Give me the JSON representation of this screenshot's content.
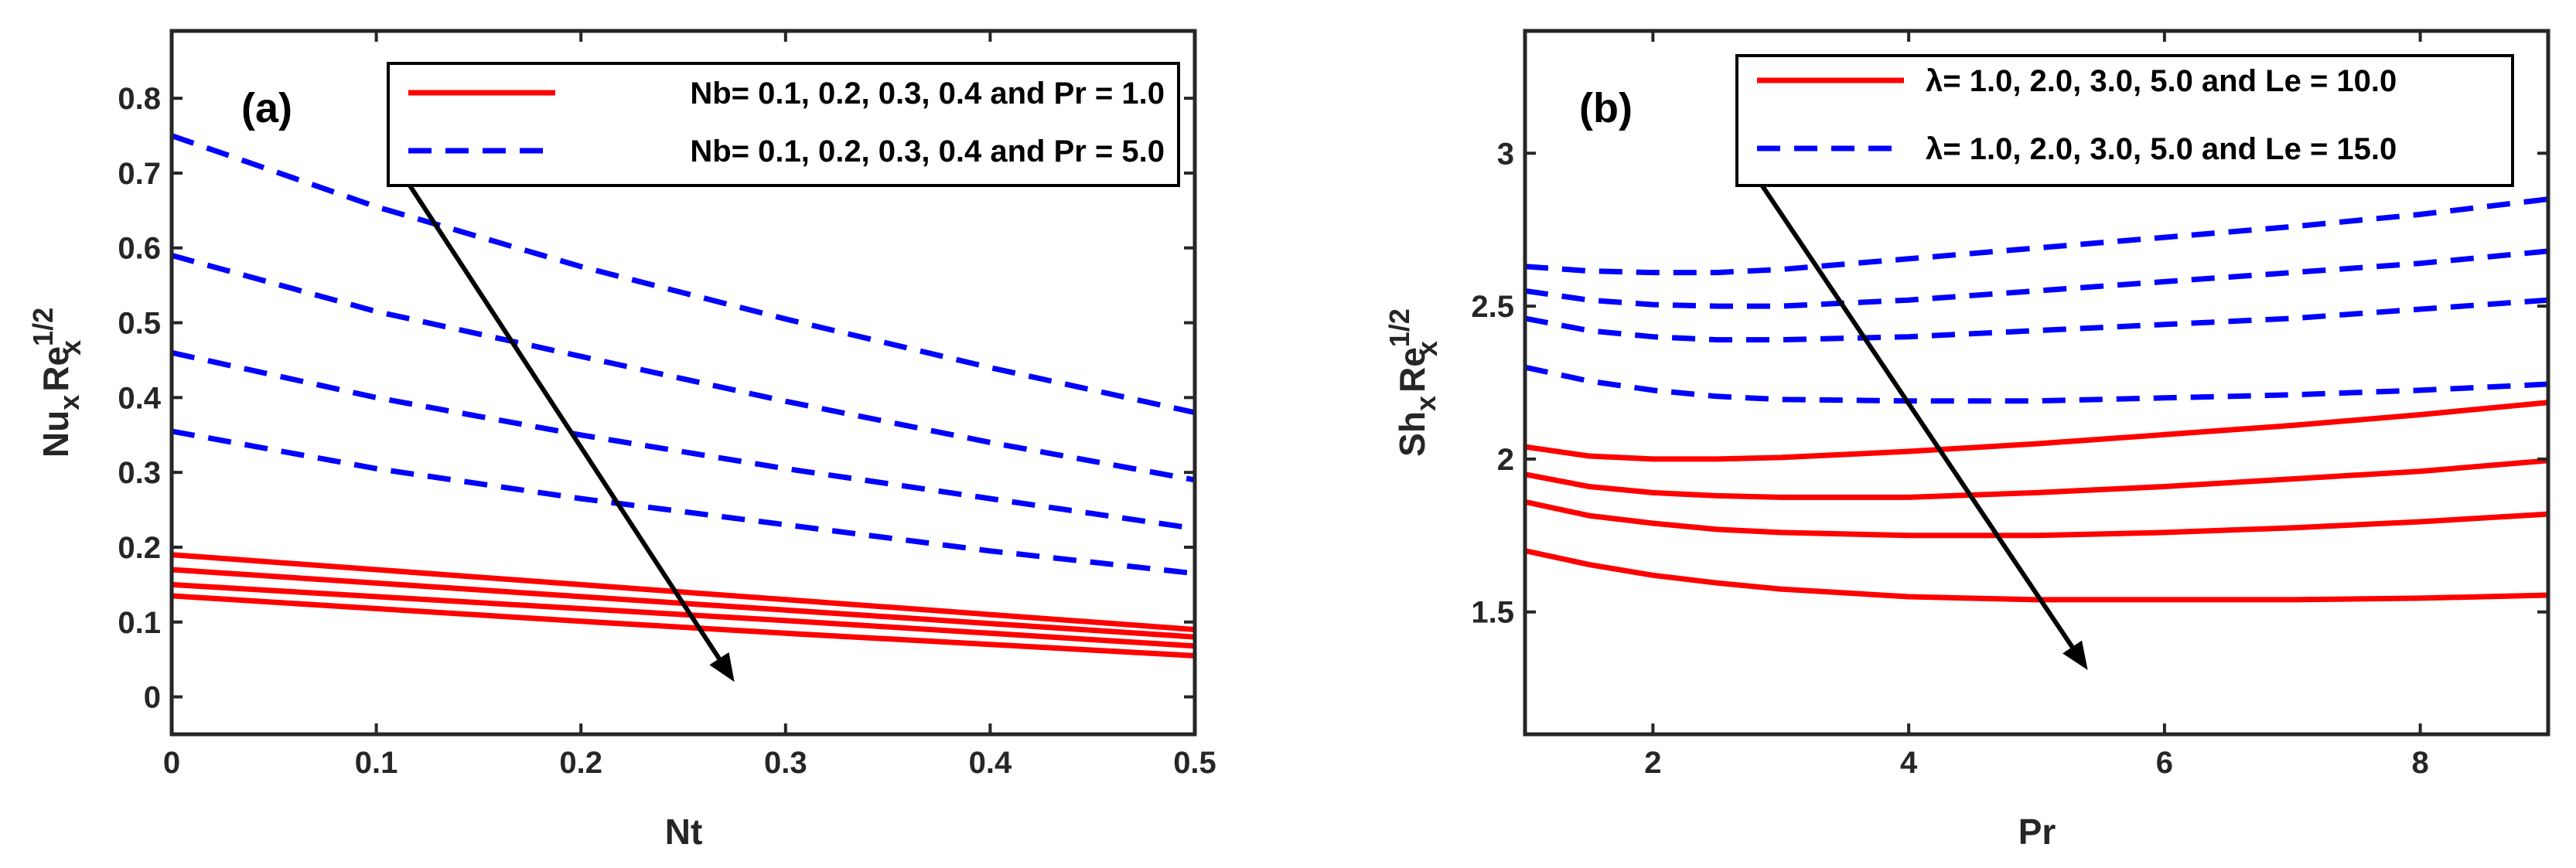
{
  "colors": {
    "red": "#ff0000",
    "blue": "#0000ff",
    "axis": "#262626",
    "arrow": "#000000"
  },
  "chart_data": [
    {
      "type": "line",
      "panel_label": "(a)",
      "xlabel": "Nt",
      "ylabel": {
        "main": "Nu",
        "sub1": "x",
        "mid": "Re",
        "sup": "1/2",
        "sub2": "x"
      },
      "xlim": [
        0,
        0.5
      ],
      "ylim": [
        -0.05,
        0.89
      ],
      "xticks": [
        0,
        0.1,
        0.2,
        0.3,
        0.4,
        0.5
      ],
      "xtick_labels": [
        "0",
        "0.1",
        "0.2",
        "0.3",
        "0.4",
        "0.5"
      ],
      "yticks": [
        0,
        0.1,
        0.2,
        0.3,
        0.4,
        0.5,
        0.6,
        0.7,
        0.8
      ],
      "ytick_labels": [
        "0",
        "0.1",
        "0.2",
        "0.3",
        "0.4",
        "0.5",
        "0.6",
        "0.7",
        "0.8"
      ],
      "legend": [
        {
          "label": "Nb= 0.1, 0.2, 0.3, 0.4 and Pr = 1.0",
          "color": "#ff0000",
          "style": "solid"
        },
        {
          "label": "Nb= 0.1, 0.2, 0.3, 0.4 and Pr = 5.0",
          "color": "#0000ff",
          "style": "dashed"
        }
      ],
      "legend_position": "top-right",
      "x": [
        0,
        0.1,
        0.2,
        0.3,
        0.4,
        0.5
      ],
      "series": [
        {
          "name": "Pr = 5.0, Nb = 0.1",
          "style": "dashed",
          "color": "#0000ff",
          "values": [
            0.75,
            0.655,
            0.575,
            0.505,
            0.44,
            0.38
          ]
        },
        {
          "name": "Pr = 5.0, Nb = 0.2",
          "style": "dashed",
          "color": "#0000ff",
          "values": [
            0.59,
            0.515,
            0.455,
            0.395,
            0.34,
            0.29
          ]
        },
        {
          "name": "Pr = 5.0, Nb = 0.3",
          "style": "dashed",
          "color": "#0000ff",
          "values": [
            0.46,
            0.4,
            0.35,
            0.305,
            0.265,
            0.225
          ]
        },
        {
          "name": "Pr = 5.0, Nb = 0.4",
          "style": "dashed",
          "color": "#0000ff",
          "values": [
            0.355,
            0.305,
            0.265,
            0.23,
            0.195,
            0.165
          ]
        },
        {
          "name": "Pr = 1.0, Nb = 0.1",
          "style": "solid",
          "color": "#ff0000",
          "values": [
            0.19,
            0.17,
            0.15,
            0.13,
            0.11,
            0.09
          ]
        },
        {
          "name": "Pr = 1.0, Nb = 0.2",
          "style": "solid",
          "color": "#ff0000",
          "values": [
            0.17,
            0.152,
            0.134,
            0.116,
            0.098,
            0.08
          ]
        },
        {
          "name": "Pr = 1.0, Nb = 0.3",
          "style": "solid",
          "color": "#ff0000",
          "values": [
            0.15,
            0.134,
            0.118,
            0.102,
            0.085,
            0.068
          ]
        },
        {
          "name": "Pr = 1.0, Nb = 0.4",
          "style": "solid",
          "color": "#ff0000",
          "values": [
            0.135,
            0.118,
            0.101,
            0.085,
            0.07,
            0.055
          ]
        }
      ],
      "annotations": [
        {
          "type": "arrow",
          "from": [
            0.11,
            0.71
          ],
          "to": [
            0.275,
            0.02
          ]
        }
      ]
    },
    {
      "type": "line",
      "panel_label": "(b)",
      "xlabel": "Pr",
      "ylabel": {
        "main": "Sh",
        "sub1": "x",
        "mid": "Re",
        "sup": "1/2",
        "sub2": "x"
      },
      "xlim": [
        1,
        9
      ],
      "ylim": [
        1.1,
        3.4
      ],
      "xticks": [
        2,
        4,
        6,
        8
      ],
      "xtick_labels": [
        "2",
        "4",
        "6",
        "8"
      ],
      "yticks": [
        1.5,
        2,
        2.5,
        3
      ],
      "ytick_labels": [
        "1.5",
        "2",
        "2.5",
        "3"
      ],
      "legend": [
        {
          "label": "λ= 1.0, 2.0, 3.0, 5.0 and Le = 10.0",
          "color": "#ff0000",
          "style": "solid"
        },
        {
          "label": "λ= 1.0, 2.0, 3.0, 5.0 and Le = 15.0",
          "color": "#0000ff",
          "style": "dashed"
        }
      ],
      "legend_position": "top-right",
      "x": [
        1,
        1.5,
        2,
        2.5,
        3,
        4,
        5,
        6,
        7,
        8,
        9
      ],
      "series": [
        {
          "name": "Le = 15.0, λ = 5.0",
          "style": "dashed",
          "color": "#0000ff",
          "values": [
            2.63,
            2.615,
            2.61,
            2.61,
            2.62,
            2.655,
            2.69,
            2.725,
            2.76,
            2.8,
            2.85
          ]
        },
        {
          "name": "Le = 15.0, λ = 3.0",
          "style": "dashed",
          "color": "#0000ff",
          "values": [
            2.55,
            2.52,
            2.505,
            2.5,
            2.5,
            2.52,
            2.55,
            2.58,
            2.61,
            2.64,
            2.68
          ]
        },
        {
          "name": "Le = 15.0, λ = 2.0",
          "style": "dashed",
          "color": "#0000ff",
          "values": [
            2.46,
            2.42,
            2.4,
            2.39,
            2.39,
            2.4,
            2.42,
            2.44,
            2.46,
            2.49,
            2.52
          ]
        },
        {
          "name": "Le = 15.0, λ = 1.0",
          "style": "dashed",
          "color": "#0000ff",
          "values": [
            2.3,
            2.255,
            2.225,
            2.205,
            2.195,
            2.19,
            2.19,
            2.2,
            2.21,
            2.225,
            2.245
          ]
        },
        {
          "name": "Le = 10.0, λ = 5.0",
          "style": "solid",
          "color": "#ff0000",
          "values": [
            2.04,
            2.01,
            2.0,
            2.0,
            2.005,
            2.025,
            2.05,
            2.08,
            2.11,
            2.145,
            2.185
          ]
        },
        {
          "name": "Le = 10.0, λ = 3.0",
          "style": "solid",
          "color": "#ff0000",
          "values": [
            1.95,
            1.91,
            1.89,
            1.88,
            1.875,
            1.875,
            1.89,
            1.91,
            1.935,
            1.96,
            1.995
          ]
        },
        {
          "name": "Le = 10.0, λ = 2.0",
          "style": "solid",
          "color": "#ff0000",
          "values": [
            1.86,
            1.815,
            1.79,
            1.77,
            1.76,
            1.75,
            1.75,
            1.76,
            1.775,
            1.795,
            1.82
          ]
        },
        {
          "name": "Le = 10.0, λ = 1.0",
          "style": "solid",
          "color": "#ff0000",
          "values": [
            1.7,
            1.655,
            1.62,
            1.595,
            1.575,
            1.55,
            1.54,
            1.54,
            1.54,
            1.545,
            1.555
          ]
        }
      ],
      "annotations": [
        {
          "type": "arrow",
          "from": [
            2.7,
            2.99
          ],
          "to": [
            5.4,
            1.31
          ]
        }
      ]
    }
  ]
}
